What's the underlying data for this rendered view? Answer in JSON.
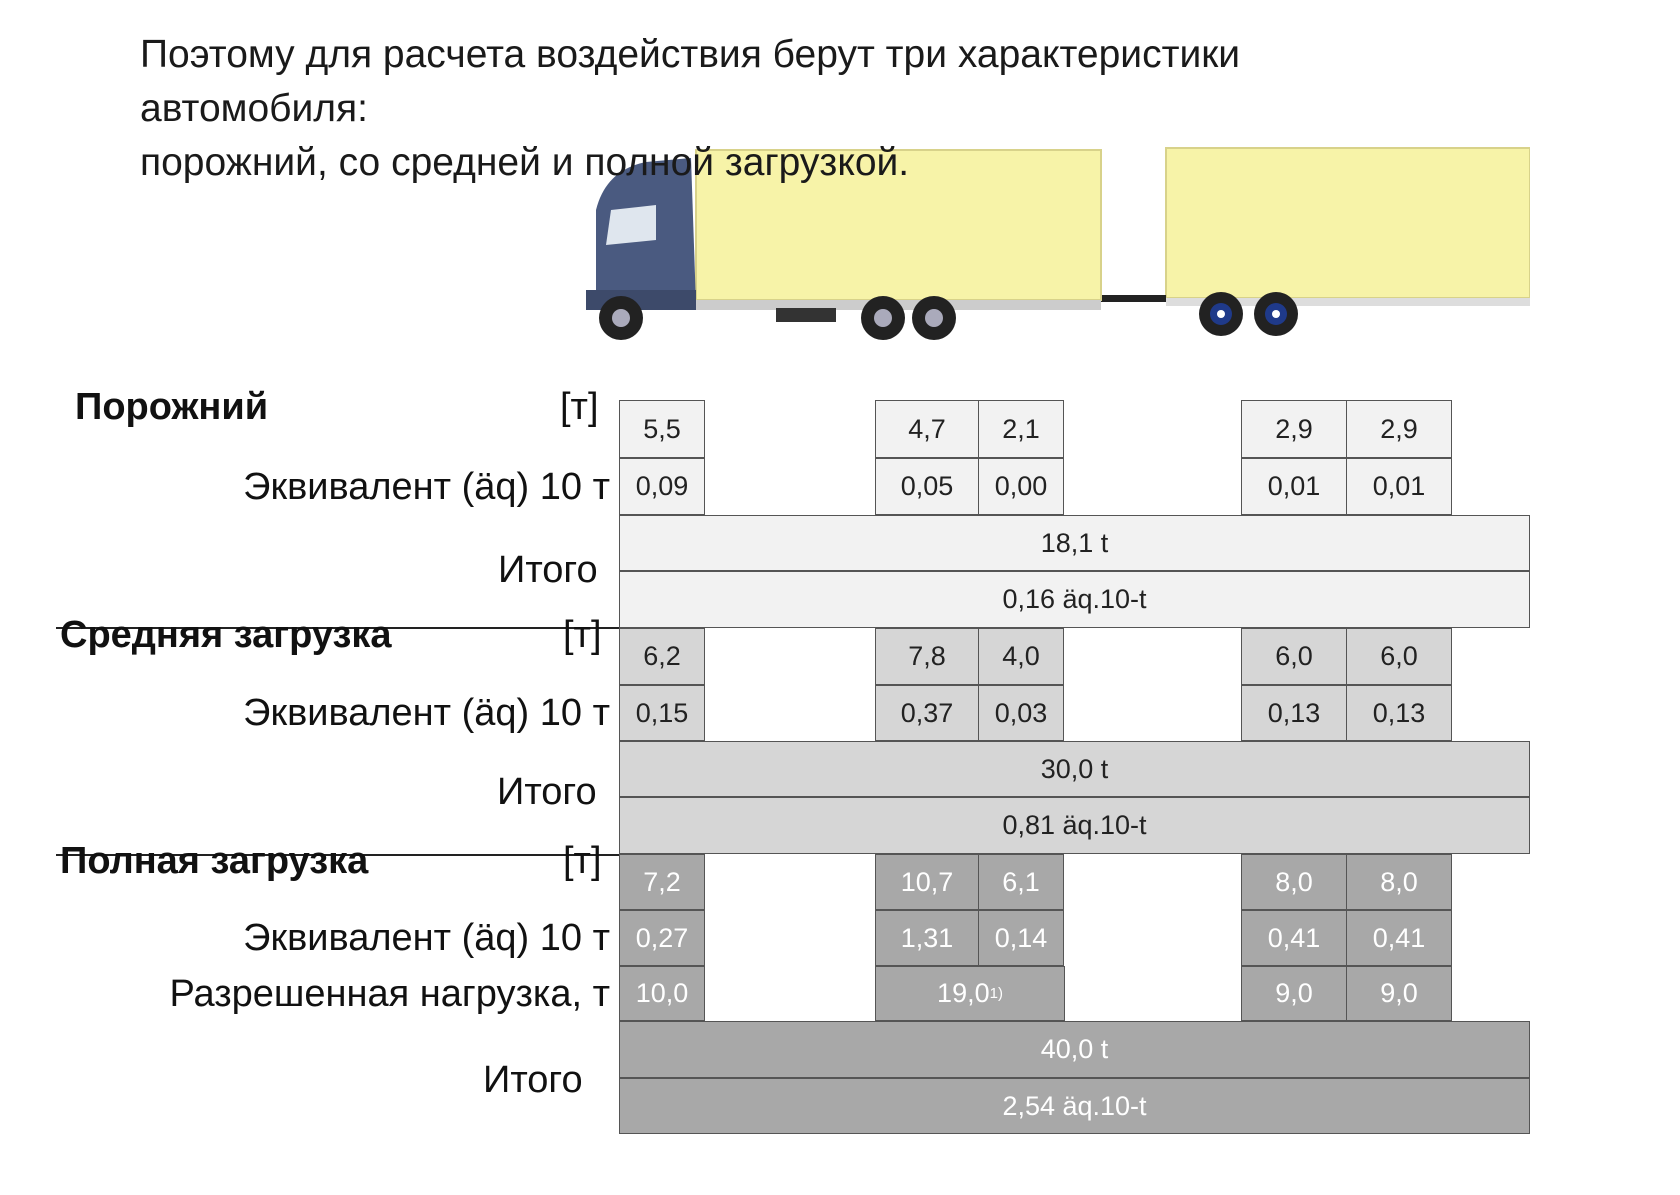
{
  "title": {
    "lines": [
      "Поэтому для расчета воздействия берут три характеристики",
      "автомобиля:",
      "порожний, со средней и полной загрузкой."
    ]
  },
  "illustration": {
    "icon": "truck-with-trailer-icon",
    "colors": {
      "cab": "#4a5a80",
      "cargo_box": "#f7f3a8",
      "wheel_hub": "#1f3a8a"
    }
  },
  "colors": {
    "empty": "#f2f2f2",
    "medium": "#d6d6d6",
    "full": "#a8a8a8"
  },
  "sections": [
    {
      "name": "Порожний",
      "unit": "[т]",
      "tone": "light",
      "rows": [
        {
          "label": "",
          "values": [
            "5,5",
            "4,7",
            "2,1",
            "2,9",
            "2,9"
          ]
        },
        {
          "label": "Эквивалент (äq) 10 т",
          "values": [
            "0,09",
            "0,05",
            "0,00",
            "0,01",
            "0,01"
          ]
        }
      ],
      "total_label": "Итого",
      "total_weight": "18,1 t",
      "total_equivalent": "0,16 äq.10-t"
    },
    {
      "name": "Средняя загрузка",
      "unit": "[т]",
      "tone": "mid",
      "rows": [
        {
          "label": "",
          "values": [
            "6,2",
            "7,8",
            "4,0",
            "6,0",
            "6,0"
          ]
        },
        {
          "label": "Эквивалент (äq) 10 т",
          "values": [
            "0,15",
            "0,37",
            "0,03",
            "0,13",
            "0,13"
          ]
        }
      ],
      "total_label": "Итого",
      "total_weight": "30,0 t",
      "total_equivalent": "0,81 äq.10-t"
    },
    {
      "name": "Полная загрузка",
      "unit": "[т]",
      "tone": "dark",
      "rows": [
        {
          "label": "",
          "values": [
            "7,2",
            "10,7",
            "6,1",
            "8,0",
            "8,0"
          ]
        },
        {
          "label": "Эквивалент (äq) 10 т",
          "values": [
            "0,27",
            "1,31",
            "0,14",
            "0,41",
            "0,41"
          ]
        },
        {
          "label": "Разрешенная нагрузка, т",
          "values": [
            "10,0",
            "19,0",
            null,
            "9,0",
            "9,0"
          ],
          "merged_tandem_note": "1)"
        }
      ],
      "total_label": "Итого",
      "total_weight": "40,0 t",
      "total_equivalent": "2,54 äq.10-t"
    }
  ]
}
